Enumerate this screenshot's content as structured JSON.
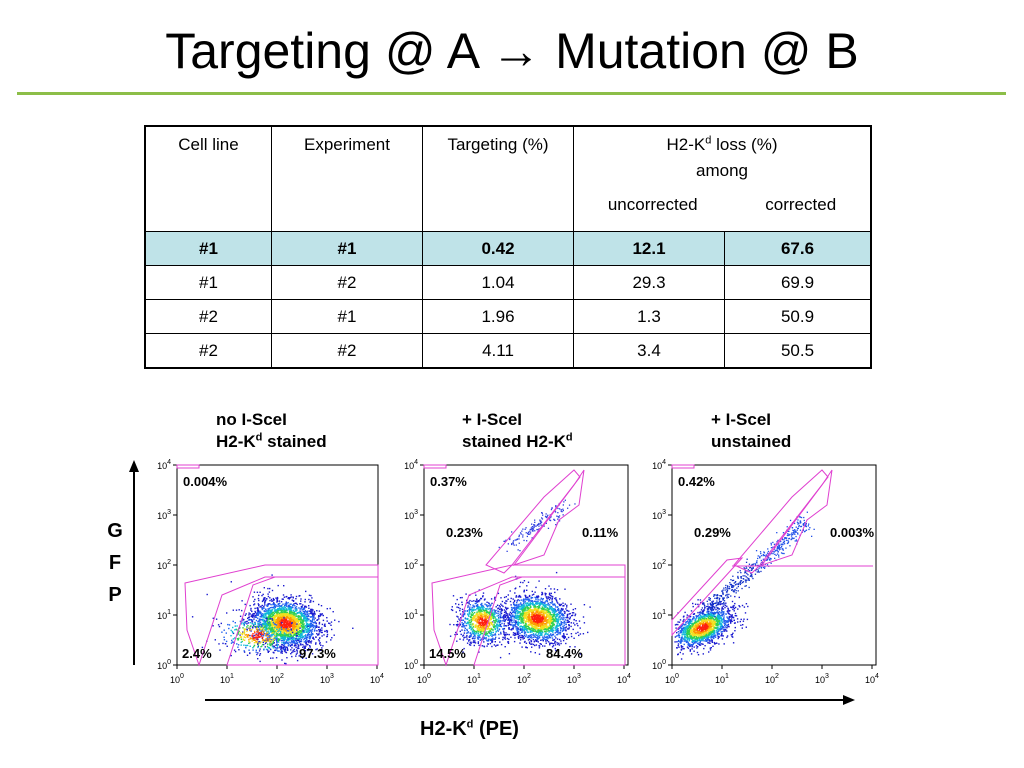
{
  "title": "Targeting @ A → Mutation @ B",
  "table": {
    "headers": {
      "cell_line": "Cell line",
      "experiment": "Experiment",
      "targeting": "Targeting (%)",
      "h2k_loss_prefix": "H2-K",
      "h2k_loss_sup": "d",
      "h2k_loss_suffix": " loss (%)",
      "among": "among",
      "uncorrected": "uncorrected",
      "corrected": "corrected"
    },
    "rows": [
      {
        "cell_line": "#1",
        "experiment": "#1",
        "targeting": "0.42",
        "uncorrected": "12.1",
        "corrected": "67.6",
        "highlight": true
      },
      {
        "cell_line": "#1",
        "experiment": "#2",
        "targeting": "1.04",
        "uncorrected": "29.3",
        "corrected": "69.9"
      },
      {
        "cell_line": "#2",
        "experiment": "#1",
        "targeting": "1.96",
        "uncorrected": "1.3",
        "corrected": "50.9"
      },
      {
        "cell_line": "#2",
        "experiment": "#2",
        "targeting": "4.11",
        "uncorrected": "3.4",
        "corrected": "50.5"
      }
    ]
  },
  "panels": [
    {
      "line1": "no I-SceI",
      "line2_prefix": "H2-K",
      "line2_sup": "d",
      "line2_suffix": " stained",
      "top_left": "0.004%",
      "mid_left": "",
      "mid_right": "",
      "bottom_left": "2.4%",
      "bottom_right": "97.3%"
    },
    {
      "line1": "+ I-SceI",
      "line2_prefix": "stained H2-K",
      "line2_sup": "d",
      "line2_suffix": "",
      "top_left": "0.37%",
      "mid_left": "0.23%",
      "mid_right": "0.11%",
      "bottom_left": "14.5%",
      "bottom_right": "84.4%"
    },
    {
      "line1": "+ I-SceI",
      "line2_prefix": "unstained",
      "line2_sup": "",
      "line2_suffix": "",
      "top_left": "0.42%",
      "mid_left": "0.29%",
      "mid_right": "0.003%",
      "bottom_left": "",
      "bottom_right": ""
    }
  ],
  "axes": {
    "y_letters": [
      "G",
      "F",
      "P"
    ],
    "x_label_prefix": "H2-K",
    "x_label_sup": "d",
    "x_label_suffix": " (PE)",
    "tick_base": "10",
    "tick_exponents": [
      "0",
      "1",
      "2",
      "3",
      "4"
    ]
  },
  "colors": {
    "accent_rule": "#8cbe48",
    "highlight_row": "#bfe3e8",
    "gate": "#e040d0"
  }
}
